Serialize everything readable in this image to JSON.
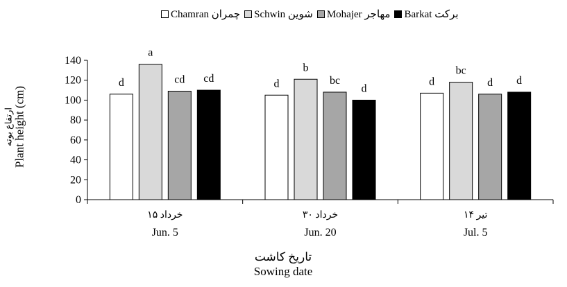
{
  "chart_data": {
    "type": "bar",
    "categories": [
      {
        "fa": "۱۵ خرداد",
        "en": "Jun. 5"
      },
      {
        "fa": "۳۰ خرداد",
        "en": "Jun. 20"
      },
      {
        "fa": "۱۴ تیر",
        "en": "Jul. 5"
      }
    ],
    "series": [
      {
        "name": "Chamran چمران",
        "color": "#ffffff",
        "values": [
          106,
          105,
          107
        ],
        "letters": [
          "d",
          "d",
          "d"
        ]
      },
      {
        "name": "Schwin شوین",
        "color": "#d9d9d9",
        "values": [
          136,
          121,
          118
        ],
        "letters": [
          "a",
          "b",
          "bc"
        ]
      },
      {
        "name": "Mohajer مهاجر",
        "color": "#a6a6a6",
        "values": [
          109,
          108,
          106
        ],
        "letters": [
          "cd",
          "bc",
          "d"
        ]
      },
      {
        "name": "Barkat برکت",
        "color": "#000000",
        "values": [
          110,
          100,
          108
        ],
        "letters": [
          "cd",
          "d",
          "d"
        ]
      }
    ],
    "ylabel": {
      "fa": "ارتفاع بوته",
      "en": "Plant height (cm)"
    },
    "xlabel": {
      "fa": "تاریخ کاشت",
      "en": "Sowing date"
    },
    "ylim": [
      0,
      140
    ],
    "yticks": [
      0,
      20,
      40,
      60,
      80,
      100,
      120,
      140
    ],
    "grid": false,
    "legend_position": "top"
  }
}
